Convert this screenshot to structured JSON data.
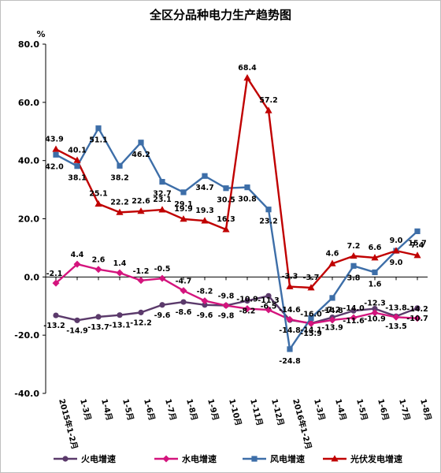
{
  "chart_data": {
    "type": "line",
    "title": "全区分品种电力生产趋势图",
    "ylabel": "%",
    "xlabel": "",
    "ylim": [
      -40,
      80
    ],
    "yticks": [
      "80.0",
      "60.0",
      "40.0",
      "20.0",
      "0.0",
      "-20.0",
      "-40.0"
    ],
    "grid": false,
    "legend_position": "bottom",
    "categories": [
      "2015年1-2月",
      "1-3月",
      "1-4月",
      "1-5月",
      "1-6月",
      "1-7月",
      "1-8月",
      "1-9月",
      "1-10月",
      "1-11月",
      "1-12月",
      "2016年1-2月",
      "1-3月",
      "1-4月",
      "1-5月",
      "1-6月",
      "1-7月",
      "1-8月"
    ],
    "series": [
      {
        "name": "火电增速",
        "color": "#5b3a6b",
        "marker": "circle",
        "values": [
          -13.2,
          -14.9,
          -13.7,
          -13.1,
          -12.2,
          -9.6,
          -8.6,
          -9.6,
          -9.8,
          -8.2,
          -6.5,
          -14.8,
          -15.9,
          -13.9,
          -11.6,
          -10.9,
          -13.5,
          -10.7
        ]
      },
      {
        "name": "水电增速",
        "color": "#d4147d",
        "marker": "diamond",
        "values": [
          -2.1,
          4.4,
          2.6,
          1.4,
          -1.2,
          -0.5,
          -4.7,
          -8.2,
          -9.8,
          -10.9,
          -11.3,
          -14.6,
          -16.0,
          -14.8,
          -14.0,
          -12.3,
          -13.8,
          -14.2
        ]
      },
      {
        "name": "风电增速",
        "color": "#3d6ea8",
        "marker": "square",
        "values": [
          42.0,
          38.1,
          51.1,
          38.2,
          46.2,
          32.7,
          29.1,
          34.7,
          30.5,
          30.8,
          23.2,
          -24.8,
          -14.1,
          -7.2,
          3.8,
          1.6,
          9.0,
          15.7
        ]
      },
      {
        "name": "光伏发电增速",
        "color": "#c00000",
        "marker": "triangle",
        "values": [
          43.9,
          40.1,
          25.1,
          22.2,
          22.6,
          23.1,
          19.9,
          19.3,
          16.3,
          68.4,
          57.2,
          -3.3,
          -3.7,
          4.6,
          7.2,
          6.6,
          9.0,
          7.4
        ]
      }
    ]
  }
}
